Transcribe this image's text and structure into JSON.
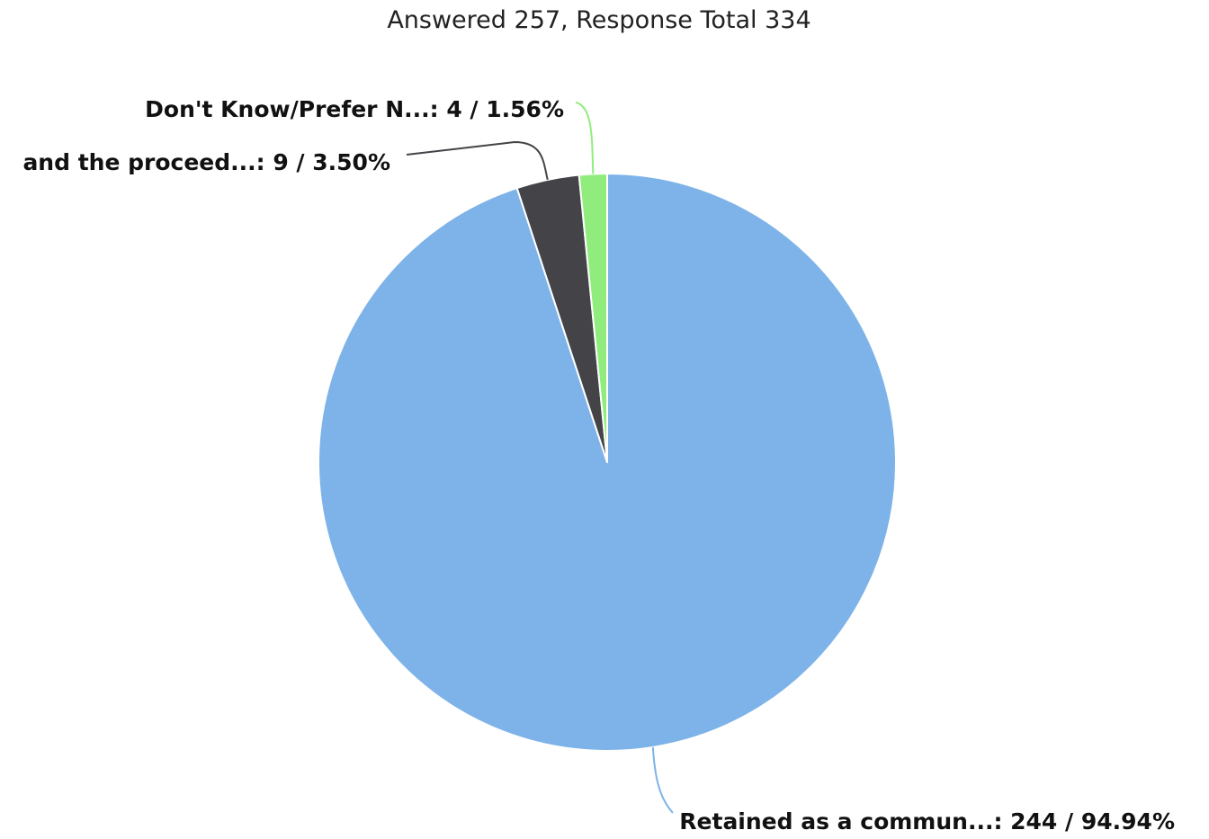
{
  "chart_data": {
    "type": "pie",
    "title": "Answered 257, Response Total 334",
    "slices": [
      {
        "label": "Retained as a commun...",
        "value": 244,
        "percent": "94.94%",
        "color": "#7db3e8",
        "leader_color": "#7db3e8"
      },
      {
        "label": "and the proceed...",
        "value": 9,
        "percent": "3.50%",
        "color": "#434348",
        "leader_color": "#434348"
      },
      {
        "label": "Don't Know/Prefer N...",
        "value": 4,
        "percent": "1.56%",
        "color": "#90ed7d",
        "leader_color": "#90ed7d"
      }
    ],
    "start_angle": "top",
    "direction": "clockwise",
    "legend": "none"
  }
}
